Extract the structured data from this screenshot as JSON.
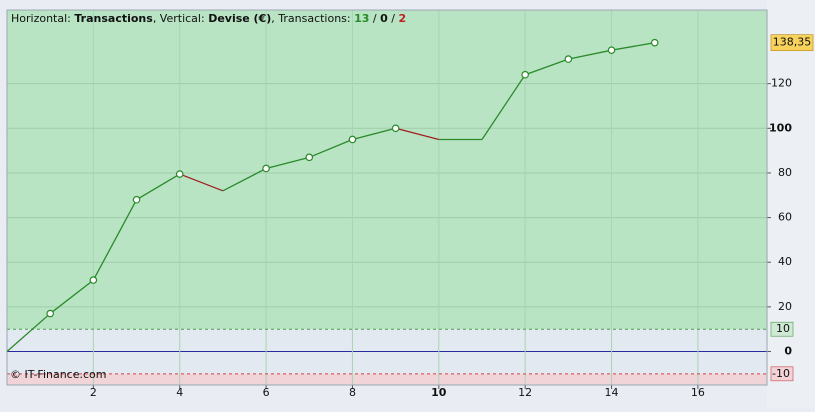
{
  "chart_data": {
    "type": "line",
    "header": [
      "Horizontal: ",
      "Transactions",
      ", Vertical: ",
      "Devise (€)",
      ", Transactions: ",
      "13",
      " / ",
      "0",
      " / ",
      "2"
    ],
    "x": [
      0,
      1,
      2,
      3,
      4,
      5,
      6,
      7,
      8,
      9,
      10,
      11,
      12,
      13,
      14,
      15
    ],
    "values": [
      0,
      17,
      32,
      68,
      79.5,
      72,
      82,
      87,
      95,
      100,
      95,
      95,
      124,
      131,
      135,
      138.35
    ],
    "markers": [
      false,
      true,
      true,
      true,
      true,
      false,
      true,
      true,
      true,
      true,
      false,
      false,
      true,
      true,
      true,
      true
    ],
    "segment_colors": [
      "#2a8a2a",
      "#2a8a2a",
      "#2a8a2a",
      "#2a8a2a",
      "#a02020",
      "#2a8a2a",
      "#2a8a2a",
      "#2a8a2a",
      "#2a8a2a",
      "#a02020",
      "#2a8a2a",
      "#2a8a2a",
      "#2a8a2a",
      "#2a8a2a",
      "#2a8a2a"
    ],
    "last_value_label": "138,35",
    "xlim": [
      0,
      17.6
    ],
    "xticks": [
      2,
      4,
      6,
      8,
      10,
      12,
      14,
      16
    ],
    "bold_xticks": [
      10
    ],
    "ylim": [
      -15,
      153
    ],
    "yticks": [
      0,
      20,
      40,
      60,
      80,
      100,
      120
    ],
    "bold_yticks": [
      0,
      100
    ],
    "levels": [
      {
        "value": 10,
        "color": "#4a9a4a"
      },
      {
        "value": -10,
        "color": "#cc4444"
      }
    ],
    "grid": true,
    "footer": "© IT-Finance.com"
  }
}
